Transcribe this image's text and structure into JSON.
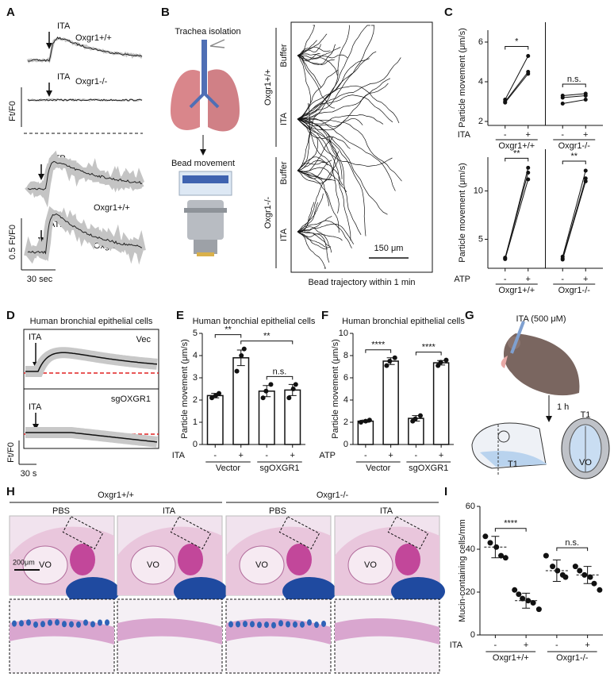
{
  "panel_letters": [
    "A",
    "B",
    "C",
    "D",
    "E",
    "F",
    "G",
    "H",
    "I"
  ],
  "panels": {
    "A": {
      "stimuli": [
        "ITA",
        "ITA",
        "ATP",
        "ATP"
      ],
      "genotypes": [
        "Oxgr1+/+",
        "Oxgr1-/-",
        "Oxgr1+/+",
        "Oxgr1-/-"
      ],
      "y_label": "Ft/F0",
      "scale_y": "0.5 Ft/F0",
      "scale_x": "30 sec"
    },
    "B": {
      "steps": [
        "Trachea isolation",
        "Bead movement"
      ],
      "genotypes": [
        "Oxgr1+/+",
        "Oxgr1-/-"
      ],
      "conditions": [
        "Buffer",
        "ITA",
        "Buffer",
        "ITA"
      ],
      "scale": "150 μm",
      "x_label": "Bead trajectory within 1 min"
    },
    "D": {
      "title": "Human bronchial epithelial cells",
      "conditions": [
        "Vec",
        "sgOXGR1"
      ],
      "stimuli": [
        "ITA",
        "ITA"
      ],
      "y_label": "Ft/F0",
      "scale_x": "30 s"
    },
    "G": {
      "treatment": "ITA (500 μM)",
      "time": "1 h",
      "section_labels": [
        "T1",
        "T1"
      ],
      "region": "VO"
    },
    "H": {
      "genotypes": [
        "Oxgr1+/+",
        "Oxgr1-/-"
      ],
      "conditions": [
        "PBS",
        "ITA",
        "PBS",
        "ITA"
      ],
      "region": [
        "VO",
        "VO",
        "VO",
        "VO"
      ],
      "scale": "200μm"
    }
  },
  "chart_data": [
    {
      "type": "paired",
      "y_label": "Particle movement (μm/s)",
      "ylim": [
        1.8,
        6.6
      ],
      "yticks": [
        2,
        4,
        6
      ],
      "treatment": "ITA",
      "levels": [
        "-",
        "+"
      ],
      "groups": [
        {
          "name": "Oxgr1+/+",
          "significance": "*",
          "pairs": [
            [
              3.1,
              5.3
            ],
            [
              3.0,
              4.5
            ],
            [
              2.95,
              4.4
            ]
          ]
        },
        {
          "name": "Oxgr1-/-",
          "significance": "n.s.",
          "pairs": [
            [
              3.3,
              3.4
            ],
            [
              3.2,
              3.3
            ],
            [
              2.9,
              3.1
            ]
          ]
        }
      ]
    },
    {
      "type": "paired",
      "y_label": "Particle movement (μm/s)",
      "ylim": [
        2,
        13.5
      ],
      "yticks": [
        5,
        10
      ],
      "treatment": "ATP",
      "levels": [
        "-",
        "+"
      ],
      "groups": [
        {
          "name": "Oxgr1+/+",
          "significance": "**",
          "pairs": [
            [
              3.0,
              12.4
            ],
            [
              3.1,
              11.9
            ],
            [
              2.95,
              11.2
            ]
          ]
        },
        {
          "name": "Oxgr1-/-",
          "significance": "**",
          "pairs": [
            [
              3.2,
              12.1
            ],
            [
              3.0,
              11.3
            ],
            [
              2.9,
              11.0
            ]
          ]
        }
      ]
    },
    {
      "type": "bar",
      "title": "Human bronchial epithelial cells",
      "y_label": "Particle movement (μm/s)",
      "ylim": [
        0,
        5
      ],
      "yticks": [
        0,
        1,
        2,
        3,
        4,
        5
      ],
      "treatment": "ITA",
      "categories": [
        "-",
        "+",
        "-",
        "+"
      ],
      "groups": [
        "Vector",
        "sgOXGR1"
      ],
      "values": [
        2.2,
        3.9,
        2.4,
        2.45
      ],
      "errors": [
        0.1,
        0.35,
        0.25,
        0.25
      ],
      "points": [
        [
          2.1,
          2.2,
          2.3
        ],
        [
          3.3,
          4.0,
          4.3
        ],
        [
          2.1,
          2.4,
          2.7
        ],
        [
          2.1,
          2.5,
          2.7
        ]
      ],
      "significance": [
        "**",
        "**",
        "n.s."
      ]
    },
    {
      "type": "bar",
      "title": "Human bronchial epithelial cells",
      "y_label": "Particle movement (μm/s)",
      "ylim": [
        0,
        10
      ],
      "yticks": [
        0,
        2,
        4,
        6,
        8,
        10
      ],
      "treatment": "ATP",
      "categories": [
        "-",
        "+",
        "-",
        "+"
      ],
      "groups": [
        "Vector",
        "sgOXGR1"
      ],
      "values": [
        2.1,
        7.5,
        2.35,
        7.35
      ],
      "errors": [
        0.1,
        0.3,
        0.25,
        0.2
      ],
      "points": [
        [
          2.0,
          2.1,
          2.2
        ],
        [
          7.1,
          7.5,
          7.8
        ],
        [
          2.1,
          2.3,
          2.6
        ],
        [
          7.1,
          7.4,
          7.6
        ]
      ],
      "significance": [
        "****",
        "****"
      ]
    },
    {
      "type": "dot",
      "y_label": "Mucin-containing cells/mm",
      "ylim": [
        0,
        60
      ],
      "yticks": [
        0,
        20,
        40,
        60
      ],
      "treatment": "ITA",
      "categories": [
        "-",
        "+",
        "-",
        "+"
      ],
      "groups": [
        "Oxgr1+/+",
        "Oxgr1-/-"
      ],
      "points": [
        [
          46,
          43,
          41,
          37,
          36
        ],
        [
          21,
          19,
          17,
          16,
          15,
          12
        ],
        [
          37,
          32,
          30,
          28,
          27
        ],
        [
          32,
          30,
          28,
          27,
          24,
          21
        ]
      ],
      "means": [
        41,
        16,
        30,
        28
      ],
      "sd": [
        5,
        3.5,
        5,
        4
      ],
      "significance": [
        "****",
        "n.s."
      ]
    }
  ]
}
